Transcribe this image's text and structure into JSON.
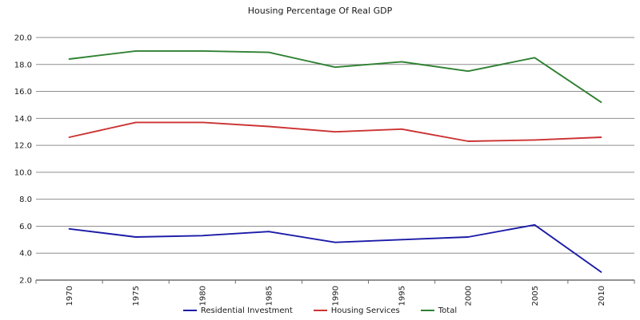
{
  "chart_data": {
    "type": "line",
    "title": "Housing Percentage Of Real GDP",
    "categories": [
      "1970",
      "1975",
      "1980",
      "1985",
      "1990",
      "1995",
      "2000",
      "2005",
      "2010"
    ],
    "series": [
      {
        "name": "Residential Investment",
        "color": "#1b1ba8",
        "values": [
          5.8,
          5.2,
          5.3,
          5.6,
          4.8,
          5.0,
          5.2,
          6.1,
          2.6
        ]
      },
      {
        "name": "Housing Services",
        "color": "#cc3232",
        "values": [
          12.6,
          13.7,
          13.7,
          13.4,
          13.0,
          13.2,
          12.3,
          12.4,
          12.6
        ]
      },
      {
        "name": "Total",
        "color": "#2f8132",
        "values": [
          18.4,
          19.0,
          19.0,
          18.9,
          17.8,
          18.2,
          17.5,
          18.5,
          15.2
        ]
      }
    ],
    "xlabel": "",
    "ylabel": "",
    "ylim": [
      2.0,
      20.0
    ],
    "y_ticks": [
      2,
      4,
      6,
      8,
      10,
      12,
      14,
      16,
      18,
      20
    ],
    "y_tick_labels": [
      "2.0",
      "4.0",
      "6.0",
      "8.0",
      "10.0",
      "12.0",
      "14.0",
      "16.0",
      "18.0",
      "20.0"
    ],
    "grid": "horizontal",
    "grid_color": "#8e8e8e",
    "axis_color": "#6e6e6e",
    "legend_position": "bottom-center",
    "x_tick_label_rotation": -90
  }
}
